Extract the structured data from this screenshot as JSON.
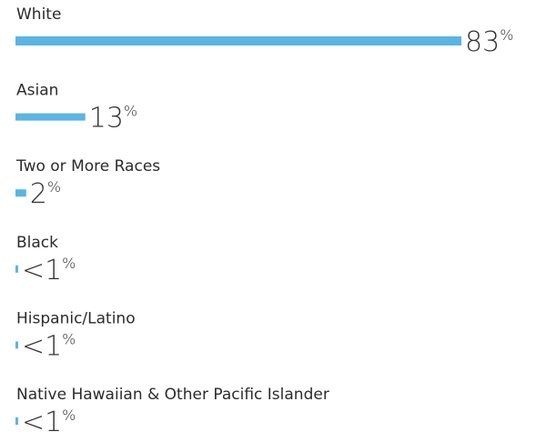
{
  "chart_data": {
    "type": "bar",
    "categories": [
      "White",
      "Asian",
      "Two or More Races",
      "Black",
      "Hispanic/Latino",
      "Native Hawaiian & Other Pacific Islander"
    ],
    "values": [
      83,
      13,
      2,
      0.5,
      0.5,
      0.5
    ],
    "value_labels": [
      "83%",
      "13%",
      "2%",
      "<1%",
      "<1%",
      "<1%"
    ],
    "color": "#5ab4e4"
  }
}
